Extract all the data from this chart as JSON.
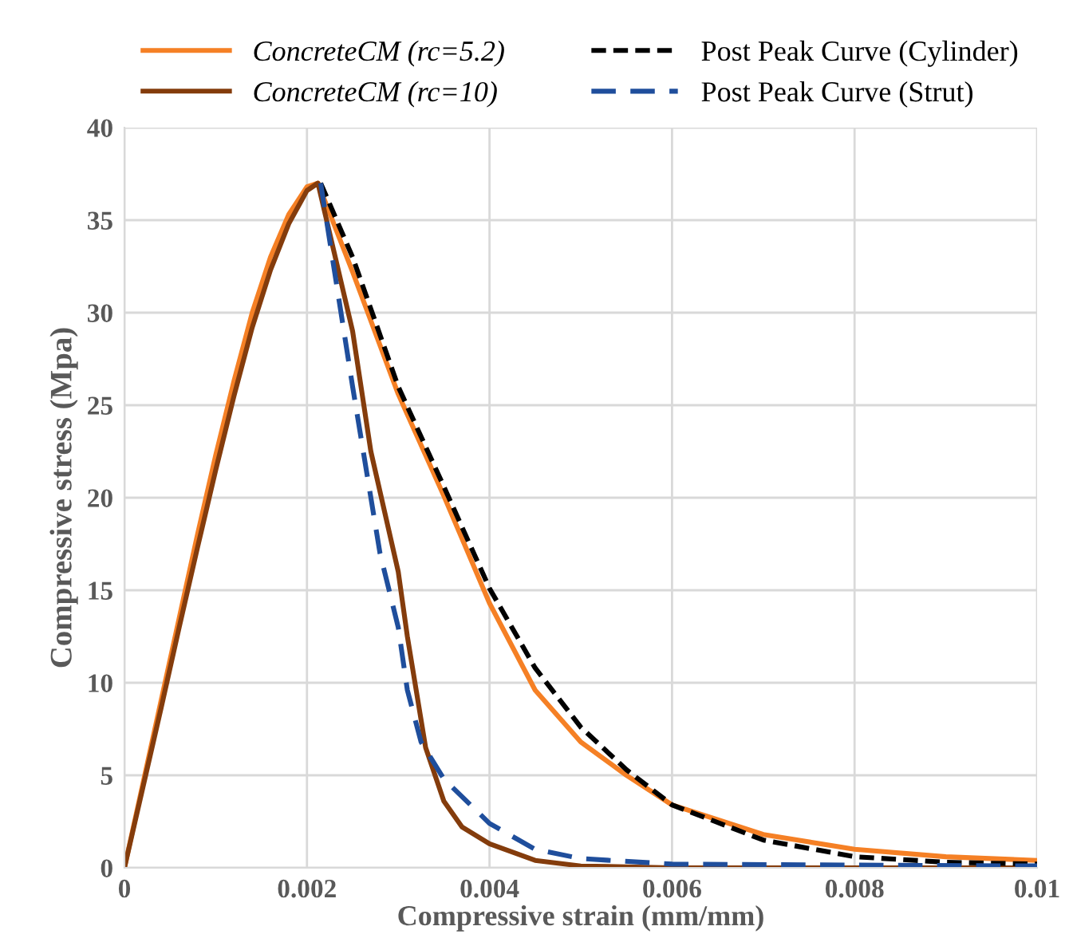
{
  "chart_data": {
    "type": "line",
    "xlabel": "Compressive strain (mm/mm)",
    "ylabel": "Compressive stress (Mpa)",
    "xlim": [
      0,
      0.01
    ],
    "ylim": [
      0,
      40
    ],
    "xticks": [
      0,
      0.002,
      0.004,
      0.006,
      0.008,
      {
        "value": 0.01,
        "label": "0.01"
      }
    ],
    "yticks": [
      0,
      5,
      10,
      15,
      20,
      25,
      30,
      35,
      40
    ],
    "grid": true,
    "legend": "top",
    "marker": "none",
    "series": [
      {
        "name": "ConcreteCM (rc=5.2)",
        "color": "#f58025",
        "line_style": "solid",
        "x": [
          0,
          0.0002,
          0.0004,
          0.0006,
          0.0008,
          0.001,
          0.0012,
          0.0014,
          0.0016,
          0.0018,
          0.002,
          0.00212,
          0.0025,
          0.003,
          0.0035,
          0.004,
          0.0045,
          0.005,
          0.0055,
          0.006,
          0.007,
          0.008,
          0.009,
          0.01
        ],
        "values": [
          0,
          4.5,
          9,
          13.5,
          18,
          22.3,
          26.3,
          30,
          33,
          35.3,
          36.8,
          37,
          32.2,
          25.6,
          20.1,
          14.3,
          9.6,
          6.8,
          5,
          3.4,
          1.8,
          1,
          0.6,
          0.4
        ]
      },
      {
        "name": "ConcreteCM (rc=10)",
        "color": "#843c0c",
        "line_style": "solid",
        "x": [
          0,
          0.0002,
          0.0004,
          0.0006,
          0.0008,
          0.001,
          0.0012,
          0.0014,
          0.0016,
          0.0018,
          0.002,
          0.00212,
          0.0025,
          0.0027,
          0.003,
          0.0031,
          0.0033,
          0.0035,
          0.0037,
          0.004,
          0.0045,
          0.005,
          0.006,
          0.01
        ],
        "values": [
          0,
          4.3,
          8.6,
          13,
          17.3,
          21.5,
          25.5,
          29.2,
          32.3,
          34.8,
          36.6,
          37,
          29,
          22.5,
          16,
          12.5,
          6.5,
          3.6,
          2.2,
          1.3,
          0.4,
          0.1,
          0,
          0
        ]
      },
      {
        "name": "Post Peak Curve (Cylinder)",
        "color": "#000000",
        "line_style": "dotted",
        "x": [
          0.00215,
          0.0025,
          0.003,
          0.0035,
          0.004,
          0.0045,
          0.005,
          0.0055,
          0.006,
          0.007,
          0.008,
          0.009,
          0.01
        ],
        "values": [
          37,
          33,
          26,
          20.6,
          15.1,
          10.8,
          7.6,
          5.3,
          3.4,
          1.5,
          0.6,
          0.3,
          0.2
        ]
      },
      {
        "name": "Post Peak Curve (Strut)",
        "color": "#1f4e9c",
        "line_style": "dashed",
        "x": [
          0.00215,
          0.0025,
          0.0028,
          0.003,
          0.0031,
          0.00325,
          0.0035,
          0.004,
          0.0045,
          0.005,
          0.006,
          0.01
        ],
        "values": [
          37,
          26,
          17,
          13,
          9.6,
          6.8,
          4.8,
          2.4,
          1,
          0.5,
          0.2,
          0.1
        ]
      }
    ]
  }
}
